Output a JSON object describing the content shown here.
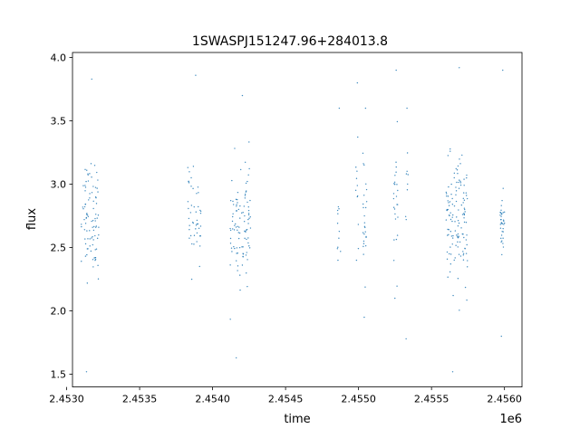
{
  "chart_data": {
    "type": "scatter",
    "title": "1SWASPJ151247.96+284013.8",
    "xlabel": "time",
    "ylabel": "flux",
    "x_offset_label": "1e6",
    "xlim": [
      2.45304,
      2.45612
    ],
    "ylim": [
      1.4,
      4.04
    ],
    "x_ticks": [
      2.453,
      2.4535,
      2.454,
      2.4545,
      2.455,
      2.4555,
      2.456
    ],
    "x_tick_labels": [
      "2.4530",
      "2.4535",
      "2.4540",
      "2.4545",
      "2.4550",
      "2.4555",
      "2.4560"
    ],
    "y_ticks": [
      1.5,
      2.0,
      2.5,
      3.0,
      3.5,
      4.0
    ],
    "y_tick_labels": [
      "1.5",
      "2.0",
      "2.5",
      "3.0",
      "3.5",
      "4.0"
    ],
    "grid": false,
    "legend": "none",
    "marker_color": "#1f77b4",
    "series_note": "x values are in units of 1e6 (time / 1e6), matching the axis offset label",
    "clusters": [
      {
        "x_start": 2.4531,
        "x_end": 2.45322,
        "y_center": 2.75,
        "y_spread": 0.22,
        "n": 90,
        "y_min": 1.52,
        "y_max": 3.83
      },
      {
        "x_start": 2.45383,
        "x_end": 2.45392,
        "y_center": 2.75,
        "y_spread": 0.18,
        "n": 45,
        "y_min": 2.25,
        "y_max": 3.86
      },
      {
        "x_start": 2.45412,
        "x_end": 2.45426,
        "y_center": 2.7,
        "y_spread": 0.22,
        "n": 100,
        "y_min": 1.63,
        "y_max": 3.7
      },
      {
        "x_start": 2.45485,
        "x_end": 2.45488,
        "y_center": 2.7,
        "y_spread": 0.15,
        "n": 10,
        "y_min": 2.4,
        "y_max": 3.6
      },
      {
        "x_start": 2.45498,
        "x_end": 2.455,
        "y_center": 2.8,
        "y_spread": 0.3,
        "n": 10,
        "y_min": 2.4,
        "y_max": 3.8
      },
      {
        "x_start": 2.45503,
        "x_end": 2.45506,
        "y_center": 2.7,
        "y_spread": 0.2,
        "n": 25,
        "y_min": 1.95,
        "y_max": 3.6
      },
      {
        "x_start": 2.45524,
        "x_end": 2.45527,
        "y_center": 2.8,
        "y_spread": 0.25,
        "n": 25,
        "y_min": 2.1,
        "y_max": 3.9
      },
      {
        "x_start": 2.45532,
        "x_end": 2.45534,
        "y_center": 2.9,
        "y_spread": 0.2,
        "n": 8,
        "y_min": 1.78,
        "y_max": 3.6
      },
      {
        "x_start": 2.4556,
        "x_end": 2.45575,
        "y_center": 2.7,
        "y_spread": 0.24,
        "n": 130,
        "y_min": 1.52,
        "y_max": 3.92
      },
      {
        "x_start": 2.45597,
        "x_end": 2.456,
        "y_center": 2.7,
        "y_spread": 0.14,
        "n": 35,
        "y_min": 1.8,
        "y_max": 3.9
      }
    ]
  }
}
